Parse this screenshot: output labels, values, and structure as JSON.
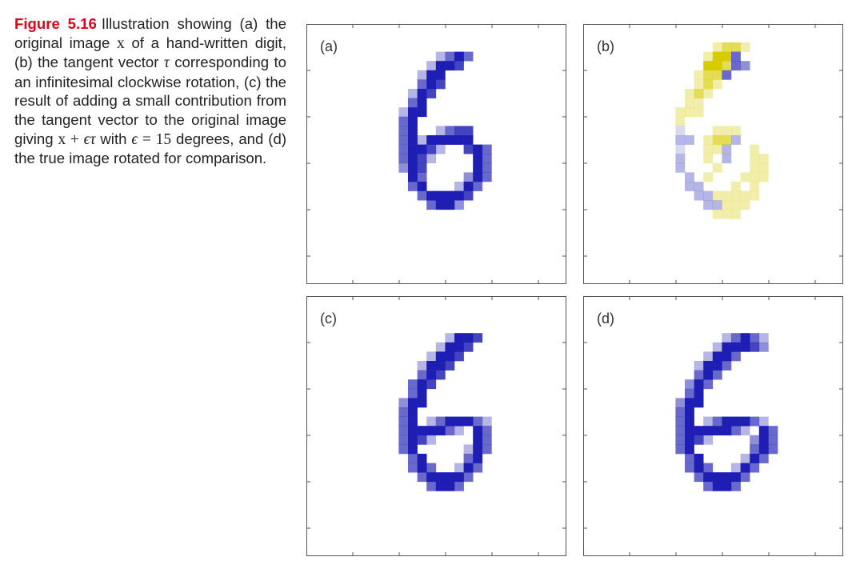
{
  "caption": {
    "figure_label": "Figure 5.16",
    "text_1": "Illustration showing (a) the original image ",
    "x_symbol": "x",
    "text_2": " of a hand-written digit, (b) the tangent vector ",
    "tau_symbol": "τ",
    "text_3": " corresponding to an infinitesimal clockwise rotation, (c) the result of adding a small contribution from the tangent vector to the original image giving ",
    "x_plus": "x",
    "plus_op": " + ",
    "eps_tau": "ϵτ",
    "text_4": " with ",
    "eps_symbol": "ϵ",
    "equals": " = 15",
    "text_5": " degrees, and (d) the true image rotated for comparison."
  },
  "panels": [
    {
      "id": "a",
      "label": "(a)"
    },
    {
      "id": "b",
      "label": "(b)"
    },
    {
      "id": "c",
      "label": "(c)"
    },
    {
      "id": "d",
      "label": "(d)"
    }
  ],
  "colors": {
    "positive": "#1e1eb4",
    "negative": "#d6cc00",
    "frame": "#555555"
  },
  "digit_images": {
    "a": [
      "................",
      "........2464....",
      ".......2665.....",
      "......266.......",
      "......465.......",
      ".....265........",
      ".....46.........",
      "....266.........",
      "....46..........",
      "....46..2455....",
      "....46266666....",
      "....46652..564..",
      "....4652....64..",
      "....365.....64..",
      ".....64....364..",
      ".....46...264...",
      "......466665....",
      ".......4663.....",
      "................"
    ],
    "b": [
      "........7887....",
      ".......7994......",
      ".......99843.....",
      "......7884......",
      "......787.......",
      ".....787........",
      ".....77.........",
      "....777.........",
      "....7...........",
      "....1...777.....",
      "....22.7882.....",
      "....1..772..7...",
      "....2..7.2..77..",
      "....2...7...77..",
      ".....2.7...777..",
      ".....22...7.7...",
      "......2277777...",
      ".......22777....",
      "........777.....",
      "................"
    ],
    "c": [
      "................",
      "................",
      ".........2665...",
      "........2665....",
      ".......2665.....",
      "......2665......",
      "......465.......",
      ".....465........",
      ".....46.........",
      "....366.........",
      "....46..........",
      "....46.2466642..",
      "....4666642.64..",
      "....4652....64..",
      "....46.....264..",
      ".....46....46...",
      ".....464..264...",
      "......466664....",
      ".......4664.....",
      "................"
    ],
    "d": [
      "................",
      "................",
      ".........24642..",
      "........266653..",
      ".......2664.....",
      "......2664......",
      "......464.......",
      ".....364........",
      ".....46.........",
      "....366.........",
      "....46..........",
      "....46.2466642..",
      "....46666642.64.",
      "....4652....364.",
      "....46......464.",
      ".....46....264..",
      ".....464..264...",
      "......466664....",
      ".......4664.....",
      "................"
    ]
  }
}
